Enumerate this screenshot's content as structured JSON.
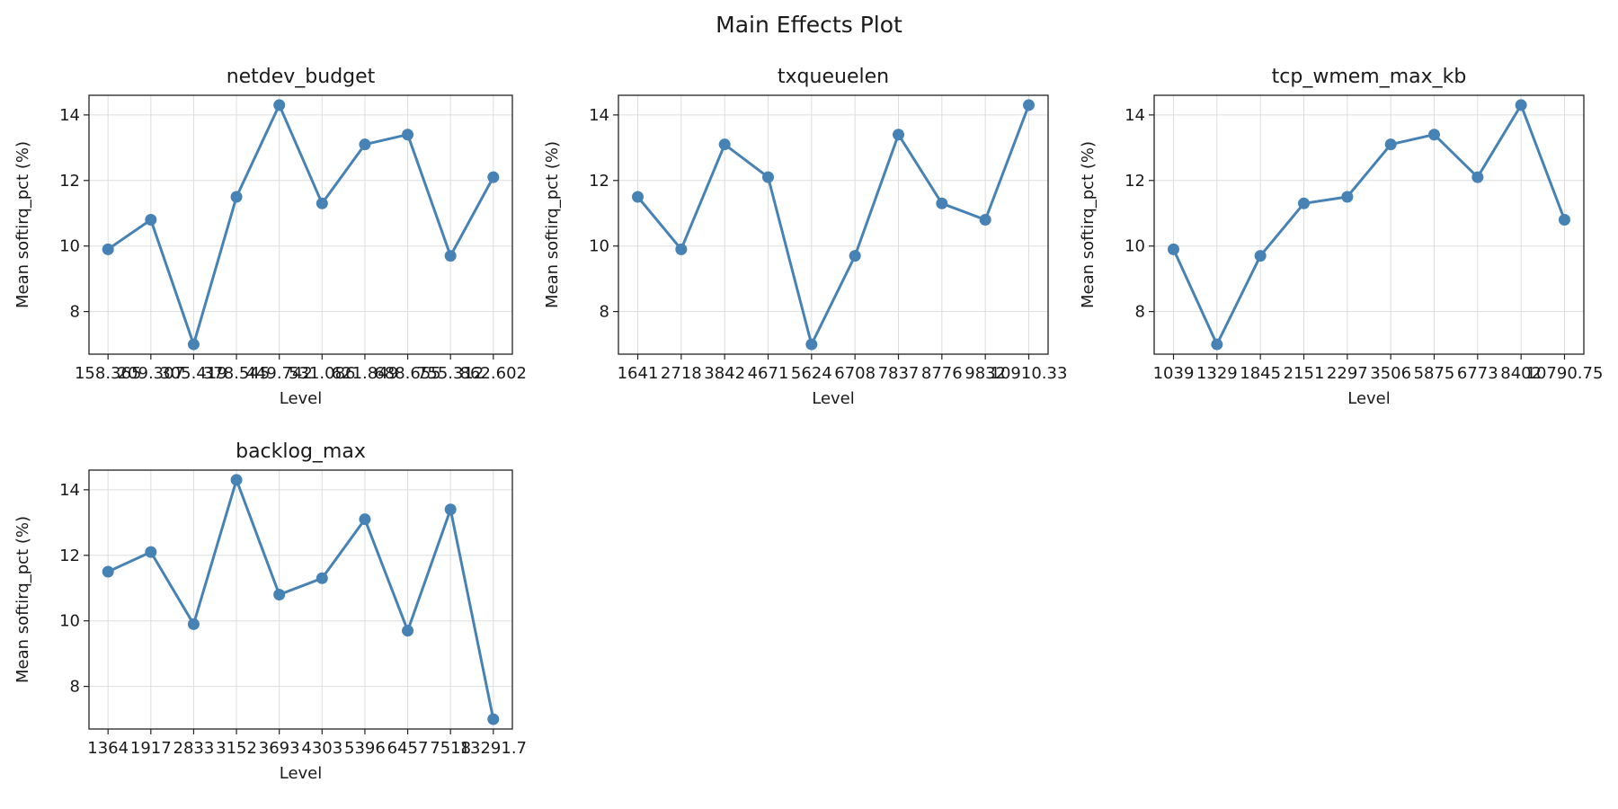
{
  "figure": {
    "suptitle": "Main Effects Plot"
  },
  "style": {
    "line_color": "#4682b4",
    "grid_color": "#dddddd",
    "axis_color": "#222222"
  },
  "chart_data": [
    {
      "type": "line",
      "title": "netdev_budget",
      "xlabel": "Level",
      "ylabel": "Mean softirq_pct (%)",
      "ylim": [
        6.7,
        14.6
      ],
      "yticks": [
        8,
        10,
        12,
        14
      ],
      "grid": true,
      "categories": [
        "158.365",
        "209.307",
        "305.419",
        "378.545",
        "449.742",
        "531.086",
        "621.849",
        "688.655",
        "755.312",
        "862.602"
      ],
      "series": [
        {
          "values": [
            9.9,
            10.8,
            7.0,
            11.5,
            14.3,
            11.3,
            13.1,
            13.4,
            9.7,
            12.1
          ]
        }
      ]
    },
    {
      "type": "line",
      "title": "txqueuelen",
      "xlabel": "Level",
      "ylabel": "Mean softirq_pct (%)",
      "ylim": [
        6.7,
        14.6
      ],
      "yticks": [
        8,
        10,
        12,
        14
      ],
      "grid": true,
      "categories": [
        "1641",
        "2718",
        "3842",
        "4671",
        "5624",
        "6708",
        "7837",
        "8776",
        "9832",
        "10910.33"
      ],
      "series": [
        {
          "values": [
            11.5,
            9.9,
            13.1,
            12.1,
            7.0,
            9.7,
            13.4,
            11.3,
            10.8,
            14.3
          ]
        }
      ]
    },
    {
      "type": "line",
      "title": "tcp_wmem_max_kb",
      "xlabel": "Level",
      "ylabel": "Mean softirq_pct (%)",
      "ylim": [
        6.7,
        14.6
      ],
      "yticks": [
        8,
        10,
        12,
        14
      ],
      "grid": true,
      "categories": [
        "1039",
        "1329",
        "1845",
        "2151",
        "2297",
        "3506",
        "5875",
        "6773",
        "8402",
        "10790.75"
      ],
      "series": [
        {
          "values": [
            9.9,
            7.0,
            9.7,
            11.3,
            11.5,
            13.1,
            13.4,
            12.1,
            14.3,
            10.8
          ]
        }
      ]
    },
    {
      "type": "line",
      "title": "backlog_max",
      "xlabel": "Level",
      "ylabel": "Mean softirq_pct (%)",
      "ylim": [
        6.7,
        14.6
      ],
      "yticks": [
        8,
        10,
        12,
        14
      ],
      "grid": true,
      "categories": [
        "1364",
        "1917",
        "2833",
        "3152",
        "3693",
        "4303",
        "5396",
        "6457",
        "7518",
        "13291.7"
      ],
      "series": [
        {
          "values": [
            11.5,
            12.1,
            9.9,
            14.3,
            10.8,
            11.3,
            13.1,
            9.7,
            13.4,
            7.0
          ]
        }
      ]
    }
  ]
}
